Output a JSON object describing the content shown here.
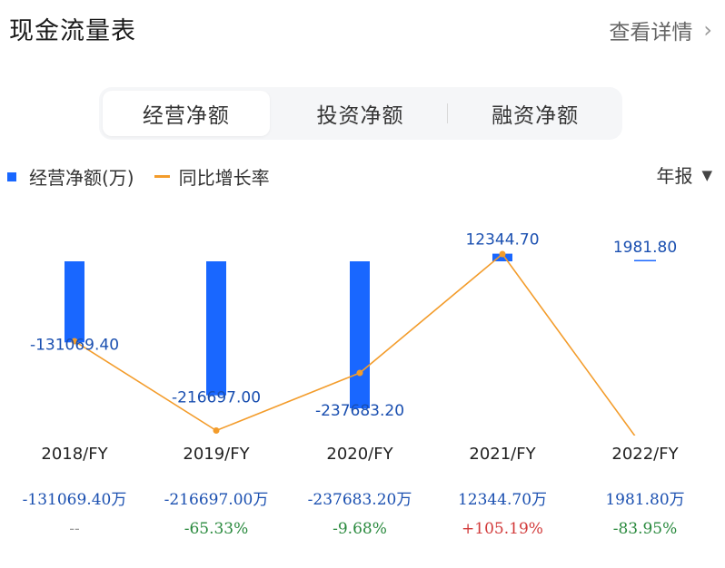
{
  "header": {
    "title": "现金流量表",
    "more_label": "查看详情"
  },
  "tabs": [
    {
      "label": "经营净额",
      "active": true
    },
    {
      "label": "投资净额",
      "active": false
    },
    {
      "label": "融资净额",
      "active": false
    }
  ],
  "legend": {
    "bar_label": "经营净额(万)",
    "line_label": "同比增长率"
  },
  "period_select": {
    "label": "年报"
  },
  "colors": {
    "bar": "#1967ff",
    "line": "#f39c2b",
    "value_text": "#1a4fb0",
    "positive_rate": "#d23a3a",
    "negative_rate": "#2a8a3e",
    "neutral_rate": "#999999"
  },
  "chart_data": {
    "type": "bar",
    "categories": [
      "2018/FY",
      "2019/FY",
      "2020/FY",
      "2021/FY",
      "2022/FY"
    ],
    "series": [
      {
        "name": "经营净额(万)",
        "type": "bar",
        "values": [
          -131069.4,
          -216697.0,
          -237683.2,
          12344.7,
          1981.8
        ]
      },
      {
        "name": "同比增长率",
        "type": "line",
        "values": [
          null,
          -65.33,
          -9.68,
          105.19,
          -83.95
        ]
      }
    ],
    "bar_labels": [
      "-131069.40",
      "-216697.00",
      "-237683.20",
      "12344.70",
      "1981.80"
    ],
    "value_row": [
      "-131069.40万",
      "-216697.00万",
      "-237683.20万",
      "12344.70万",
      "1981.80万"
    ],
    "rate_row": [
      "--",
      "-65.33%",
      "-9.68%",
      "+105.19%",
      "-83.95%"
    ]
  }
}
